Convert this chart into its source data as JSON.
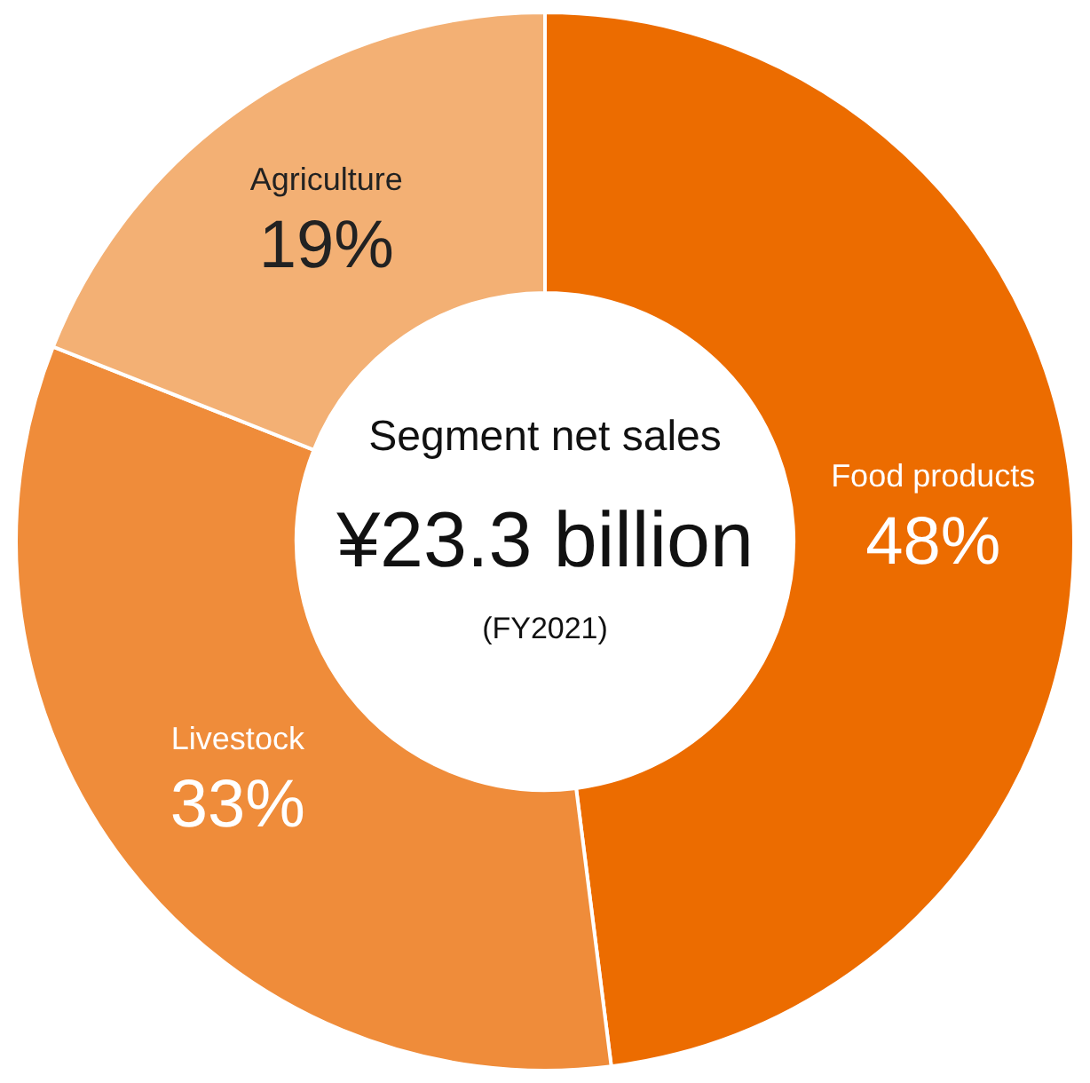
{
  "chart_data": {
    "type": "donut",
    "categories": [
      "Food products",
      "Livestock",
      "Agriculture"
    ],
    "values": [
      48,
      33,
      19
    ],
    "value_labels": [
      "48%",
      "33%",
      "19%"
    ],
    "colors": [
      "#ec6c00",
      "#ef8c3a",
      "#f3b074"
    ],
    "annotations": [
      "Segment net sales",
      "¥23.3 billion",
      "(FY2021)"
    ],
    "legend": false
  }
}
